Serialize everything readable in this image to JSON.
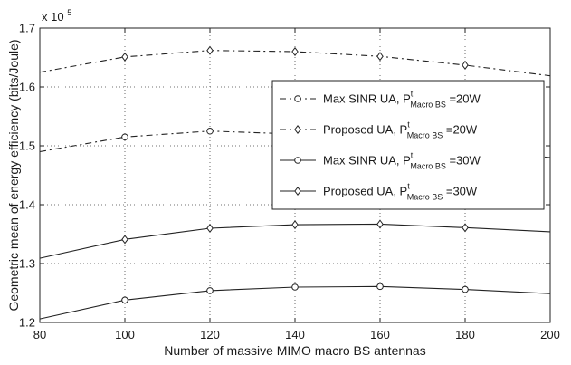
{
  "chart_data": {
    "type": "line",
    "title": "",
    "xlabel": "Number of massive MIMO macro BS antennas",
    "ylabel": "Geometric mean of energy efficiency (bits/Joule)",
    "y_multiplier_label": "x 10",
    "y_multiplier_exponent": "5",
    "xlim": [
      80,
      200
    ],
    "ylim": [
      1.2,
      1.7
    ],
    "x_ticks": [
      "80",
      "100",
      "120",
      "140",
      "160",
      "180",
      "200"
    ],
    "y_ticks": [
      "1.2",
      "1.3",
      "1.4",
      "1.5",
      "1.6",
      "1.7"
    ],
    "grid": true,
    "legend_position": "center-right",
    "x": [
      80,
      100,
      120,
      140,
      160,
      180,
      200
    ],
    "series": [
      {
        "name_main": "Max SINR UA, P",
        "name_sup": "t",
        "name_sub": "Macro BS",
        "name_tail": " =20W",
        "line_style": "dashdot",
        "marker": "circle",
        "values": [
          1.49,
          1.515,
          1.525,
          1.52,
          1.515,
          1.495,
          1.48
        ]
      },
      {
        "name_main": "Proposed UA, P",
        "name_sup": "t",
        "name_sub": "Macro BS",
        "name_tail": " =20W",
        "line_style": "dashdot",
        "marker": "diamond",
        "values": [
          1.625,
          1.651,
          1.662,
          1.66,
          1.652,
          1.637,
          1.619
        ]
      },
      {
        "name_main": "Max SINR UA, P",
        "name_sup": "t",
        "name_sub": "Macro BS",
        "name_tail": " =30W",
        "line_style": "solid",
        "marker": "circle",
        "values": [
          1.206,
          1.238,
          1.254,
          1.26,
          1.261,
          1.256,
          1.249
        ]
      },
      {
        "name_main": "Proposed UA, P",
        "name_sup": "t",
        "name_sub": "Macro BS",
        "name_tail": " =30W",
        "line_style": "solid",
        "marker": "diamond",
        "values": [
          1.309,
          1.341,
          1.36,
          1.366,
          1.367,
          1.361,
          1.354
        ]
      }
    ]
  }
}
